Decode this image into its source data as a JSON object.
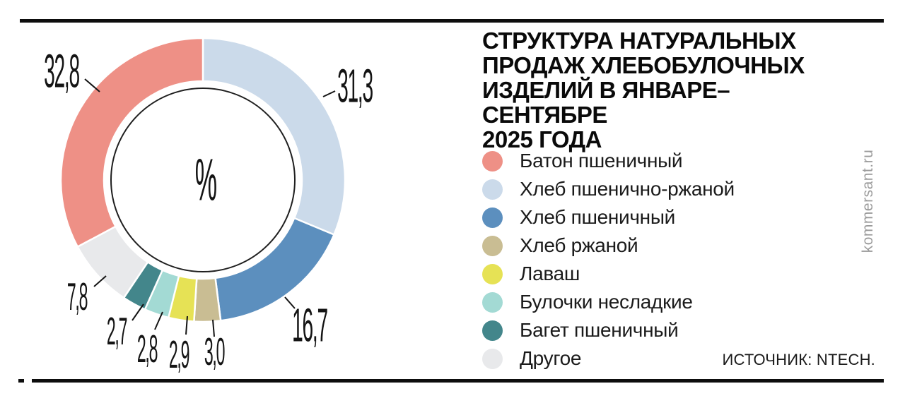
{
  "header": {
    "title": "СТРУКТУРА НАТУРАЛЬНЫХ\nПРОДАЖ ХЛЕБОБУЛОЧНЫХ\nИЗДЕЛИЙ В ЯНВАРЕ–СЕНТЯБРЕ\n2025 ГОДА"
  },
  "chart_data": {
    "type": "pie",
    "subtype": "donut",
    "title": "Структура натуральных продаж хлебобулочных изделий в январе–сентябре 2025 года",
    "unit": "%",
    "center_label": "%",
    "legend_position": "right",
    "clockwise_order_from_top": [
      "Хлеб пшенично-ржаной",
      "Хлеб пшеничный",
      "Хлеб ржаной",
      "Лаваш",
      "Булочки несладкие",
      "Багет пшеничный",
      "Другое",
      "Батон пшеничный"
    ],
    "slices": [
      {
        "label": "Батон пшеничный",
        "value": 32.8,
        "display": "32,8",
        "color": "#EE9086"
      },
      {
        "label": "Хлеб пшенично-ржаной",
        "value": 31.3,
        "display": "31,3",
        "color": "#CBDAEA"
      },
      {
        "label": "Хлеб пшеничный",
        "value": 16.7,
        "display": "16,7",
        "color": "#5C8FBE"
      },
      {
        "label": "Хлеб ржаной",
        "value": 3.0,
        "display": "3,0",
        "color": "#C9BD93"
      },
      {
        "label": "Лаваш",
        "value": 2.9,
        "display": "2,9",
        "color": "#E6E255"
      },
      {
        "label": "Булочки несладкие",
        "value": 2.8,
        "display": "2,8",
        "color": "#A3DAD4"
      },
      {
        "label": "Багет пшеничный",
        "value": 2.7,
        "display": "2,7",
        "color": "#43868B"
      },
      {
        "label": "Другое",
        "value": 7.8,
        "display": "7,8",
        "color": "#E8E9EB"
      }
    ]
  },
  "source": {
    "text": "ИСТОЧНИК: NTECH."
  },
  "watermark": {
    "text": "kommersant.ru"
  },
  "colors": {
    "frame": "#0d0d0d",
    "inner_circle_stroke": "#1f1f1f",
    "slice_separator": "#ffffff",
    "watermark_gray": "#9b9b9b"
  }
}
